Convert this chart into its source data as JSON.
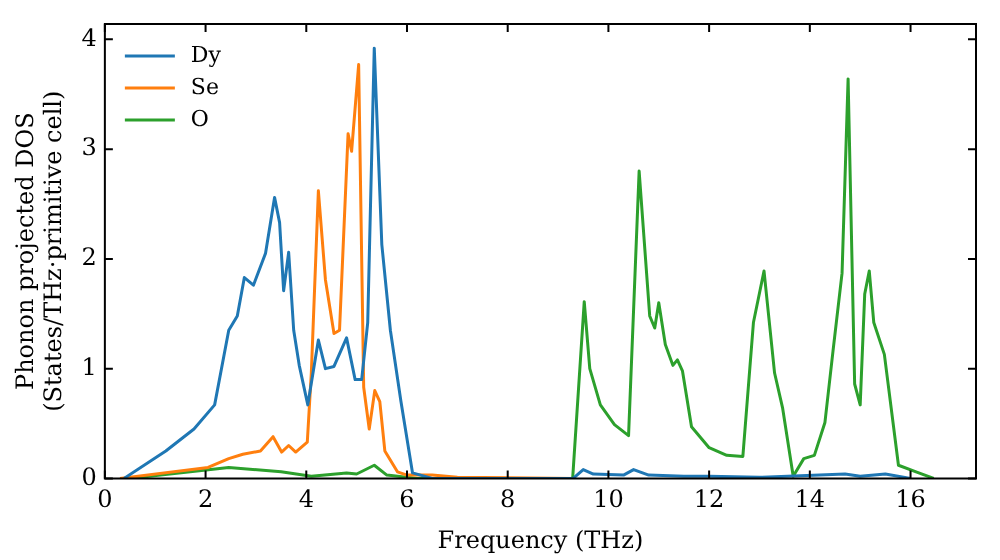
{
  "chart_data": {
    "type": "line",
    "xlabel": "Frequency (THz)",
    "ylabel": "Phonon projected DOS\n(States/THz·primitive cell)",
    "xlim": [
      0,
      17.3
    ],
    "ylim": [
      0,
      4.14
    ],
    "xticks": [
      0,
      2,
      4,
      6,
      8,
      10,
      12,
      14,
      16
    ],
    "yticks": [
      0,
      1,
      2,
      3,
      4
    ],
    "grid": false,
    "legend": "top left",
    "marker": "none",
    "line_style": "solid",
    "series": [
      {
        "name": "Dy",
        "color": "#1f77b4",
        "x": [
          0.38,
          1.21,
          1.77,
          2.18,
          2.46,
          2.63,
          2.77,
          2.95,
          3.19,
          3.37,
          3.47,
          3.55,
          3.65,
          3.75,
          3.86,
          4.03,
          4.24,
          4.38,
          4.55,
          4.8,
          4.97,
          5.1,
          5.22,
          5.35,
          5.5,
          5.67,
          5.88,
          6.11,
          6.5,
          9.3,
          9.5,
          9.7,
          10.3,
          10.5,
          10.8,
          11.5,
          12,
          13,
          14.7,
          15,
          15.5,
          16
        ],
        "values": [
          0,
          0.25,
          0.45,
          0.67,
          1.35,
          1.48,
          1.83,
          1.76,
          2.05,
          2.56,
          2.33,
          1.71,
          2.06,
          1.35,
          1.03,
          0.67,
          1.26,
          1.0,
          1.02,
          1.28,
          0.9,
          0.9,
          1.42,
          3.92,
          2.13,
          1.35,
          0.7,
          0.05,
          0,
          0,
          0.08,
          0.04,
          0.03,
          0.08,
          0.03,
          0.02,
          0.02,
          0.01,
          0.04,
          0.02,
          0.04,
          0
        ]
      },
      {
        "name": "Se",
        "color": "#ff7f0e",
        "x": [
          0.3,
          2.05,
          2.46,
          2.74,
          3.09,
          3.34,
          3.51,
          3.65,
          3.79,
          4.02,
          4.1,
          4.24,
          4.38,
          4.55,
          4.66,
          4.83,
          4.9,
          5.04,
          5.14,
          5.25,
          5.36,
          5.46,
          5.56,
          5.81,
          6.0,
          6.5,
          7.0,
          9.3
        ],
        "values": [
          0,
          0.1,
          0.18,
          0.22,
          0.25,
          0.38,
          0.24,
          0.3,
          0.24,
          0.33,
          0.96,
          2.62,
          1.81,
          1.32,
          1.35,
          3.14,
          2.98,
          3.77,
          0.83,
          0.45,
          0.8,
          0.7,
          0.25,
          0.06,
          0.03,
          0.03,
          0.01,
          0
        ]
      },
      {
        "name": "O",
        "color": "#2ca02c",
        "x": [
          0.5,
          2.46,
          3.5,
          4.1,
          4.8,
          5.0,
          5.35,
          5.6,
          6.2,
          9.29,
          9.52,
          9.63,
          9.84,
          10.12,
          10.4,
          10.61,
          10.82,
          10.92,
          11.0,
          11.13,
          11.28,
          11.37,
          11.47,
          11.65,
          12.0,
          12.35,
          12.67,
          12.88,
          13.09,
          13.3,
          13.46,
          13.67,
          13.88,
          14.09,
          14.3,
          14.46,
          14.64,
          14.76,
          14.89,
          15.0,
          15.09,
          15.18,
          15.27,
          15.48,
          15.76,
          16.11,
          16.46
        ],
        "values": [
          0,
          0.1,
          0.06,
          0.02,
          0.05,
          0.04,
          0.12,
          0.03,
          0,
          0,
          1.61,
          1.0,
          0.67,
          0.49,
          0.39,
          2.8,
          1.48,
          1.37,
          1.6,
          1.22,
          1.03,
          1.08,
          0.98,
          0.47,
          0.28,
          0.21,
          0.2,
          1.42,
          1.89,
          0.96,
          0.64,
          0.02,
          0.18,
          0.21,
          0.51,
          1.16,
          1.87,
          3.64,
          0.86,
          0.67,
          1.68,
          1.89,
          1.42,
          1.13,
          0.12,
          0.06,
          0
        ]
      }
    ]
  }
}
